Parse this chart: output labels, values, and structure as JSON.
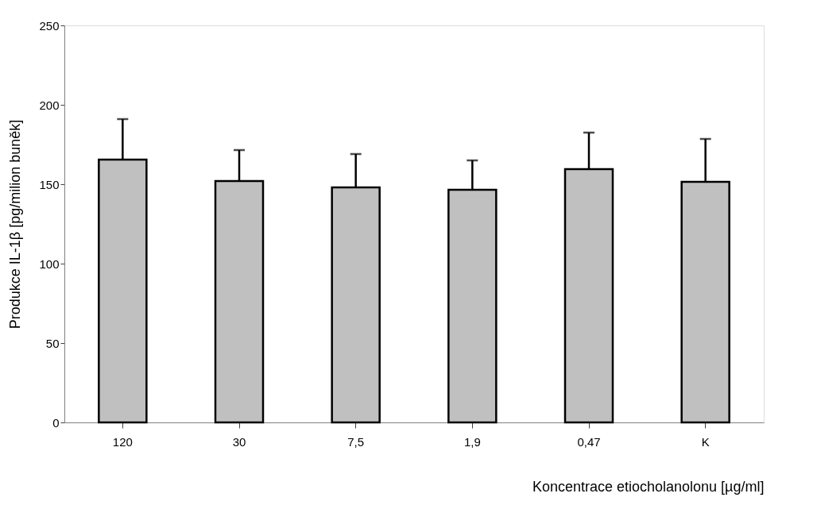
{
  "chart_data": {
    "type": "bar",
    "xlabel": "Koncentrace etiocholanolonu [µg/ml]",
    "ylabel": "Produkce IL-1β [pg/milion buněk]",
    "categories": [
      "120",
      "30",
      "7,5",
      "1,9",
      "0,47",
      "K"
    ],
    "values": [
      165.5,
      152,
      148,
      146.5,
      159.5,
      151.5
    ],
    "errors": [
      [
        165.5,
        191
      ],
      [
        152,
        171.5
      ],
      [
        148,
        169
      ],
      [
        146.5,
        165
      ],
      [
        159.5,
        182.5
      ],
      [
        151.5,
        178.5
      ]
    ],
    "color": "#c0c0c0",
    "ylim": [
      0,
      250
    ],
    "yticks": [
      0,
      50,
      100,
      150,
      200,
      250
    ],
    "grid": false
  }
}
